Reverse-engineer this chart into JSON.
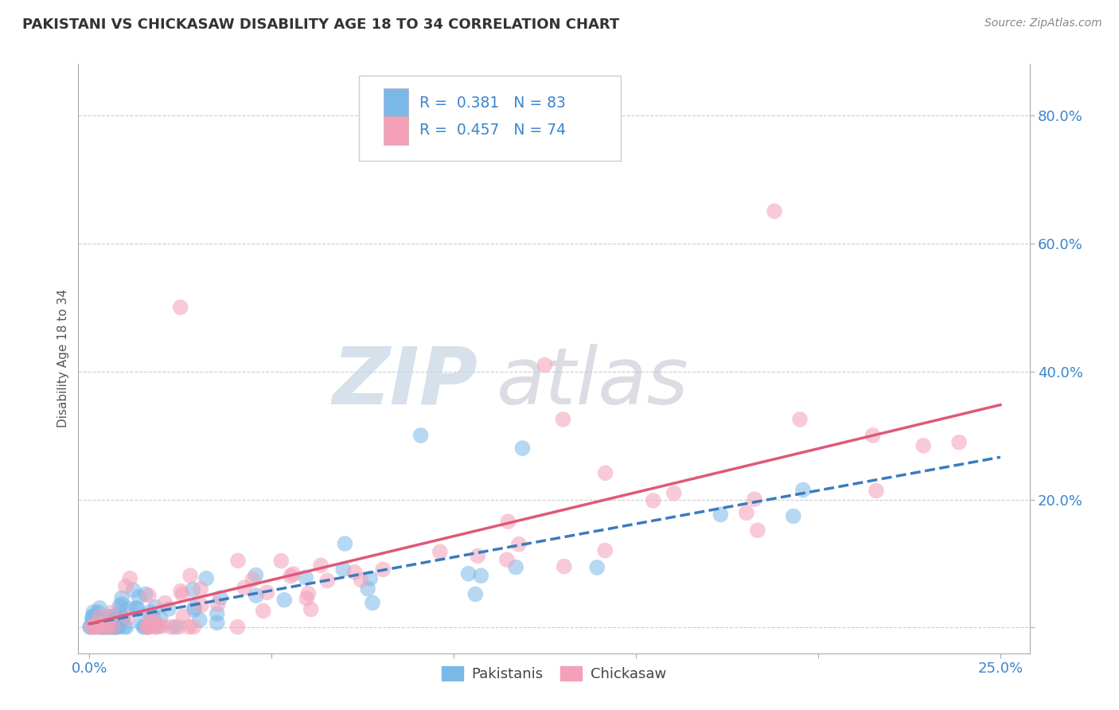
{
  "title": "PAKISTANI VS CHICKASAW DISABILITY AGE 18 TO 34 CORRELATION CHART",
  "source": "Source: ZipAtlas.com",
  "ylabel": "Disability Age 18 to 34",
  "xlim": [
    -0.003,
    0.258
  ],
  "ylim": [
    -0.04,
    0.88
  ],
  "xticks": [
    0.0,
    0.05,
    0.1,
    0.15,
    0.2,
    0.25
  ],
  "xticklabels": [
    "0.0%",
    "",
    "",
    "",
    "",
    "25.0%"
  ],
  "yticks": [
    0.0,
    0.2,
    0.4,
    0.6,
    0.8
  ],
  "yticklabels": [
    "",
    "20.0%",
    "40.0%",
    "60.0%",
    "80.0%"
  ],
  "blue_color": "#7ab8e8",
  "pink_color": "#f4a0b8",
  "blue_line_color": "#3a7bbf",
  "pink_line_color": "#e05878",
  "pakistanis_label": "Pakistanis",
  "chickasaw_label": "Chickasaw",
  "watermark_zip": "ZIP",
  "watermark_atlas": "atlas",
  "watermark_color_zip": "#c8d8e8",
  "watermark_color_atlas": "#c8c8d8"
}
